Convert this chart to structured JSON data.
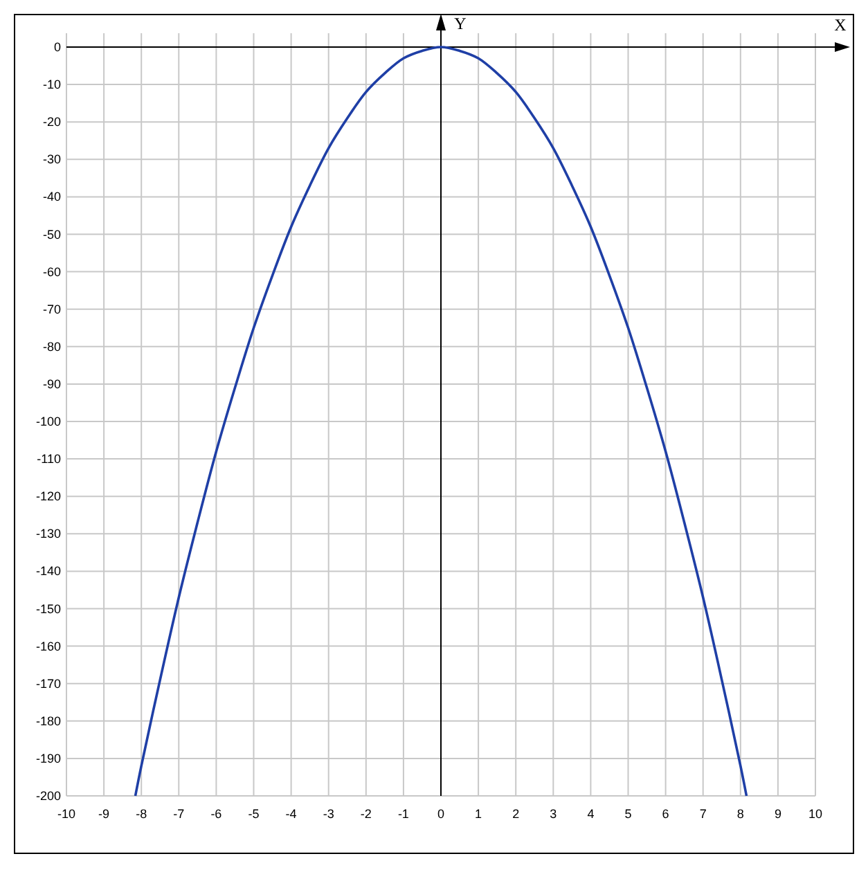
{
  "chart_data": {
    "type": "line",
    "xlabel": "X",
    "ylabel": "Y",
    "x": [
      -8.16,
      -8,
      -7.5,
      -7,
      -6.5,
      -6,
      -5.5,
      -5,
      -4.5,
      -4,
      -3.5,
      -3,
      -2.5,
      -2,
      -1.5,
      -1,
      -0.5,
      0,
      0.5,
      1,
      1.5,
      2,
      2.5,
      3,
      3.5,
      4,
      4.5,
      5,
      5.5,
      6,
      6.5,
      7,
      7.5,
      8,
      8.16
    ],
    "series": [
      {
        "color": "#1f3fa6",
        "values": [
          -200,
          -192,
          -169,
          -147,
          -127,
          -108,
          -91,
          -75,
          -61,
          -48,
          -37,
          -27,
          -19,
          -12,
          -7,
          -3,
          -1,
          0,
          -1,
          -3,
          -7,
          -12,
          -19,
          -27,
          -37,
          -48,
          -61,
          -75,
          -91,
          -108,
          -127,
          -147,
          -169,
          -192,
          -200
        ]
      }
    ],
    "xlim": [
      -10,
      10
    ],
    "ylim": [
      -200,
      0
    ],
    "xticks": [
      -10,
      -9,
      -8,
      -7,
      -6,
      -5,
      -4,
      -3,
      -2,
      -1,
      0,
      1,
      2,
      3,
      4,
      5,
      6,
      7,
      8,
      9,
      10
    ],
    "yticks": [
      0,
      -10,
      -20,
      -30,
      -40,
      -50,
      -60,
      -70,
      -80,
      -90,
      -100,
      -110,
      -120,
      -130,
      -140,
      -150,
      -160,
      -170,
      -180,
      -190,
      -200
    ],
    "grid": true,
    "marker": "none",
    "line_style": "solid"
  }
}
